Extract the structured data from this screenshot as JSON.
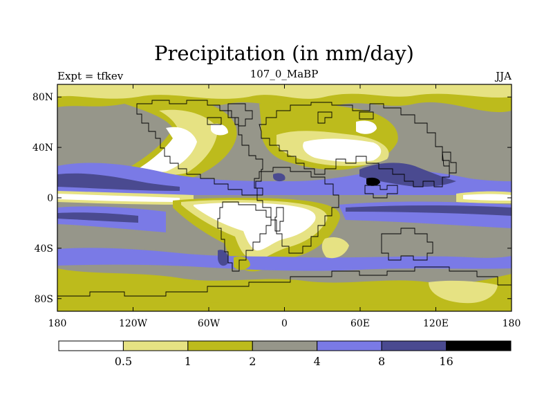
{
  "chart_data": {
    "type": "heatmap",
    "title": "Precipitation (in mm/day)",
    "subtitle_left": "Expt = tfkev",
    "subtitle_center": "107_0_MaBP",
    "subtitle_right": "JJA",
    "x_ticks": [
      {
        "value": -180,
        "label": "180"
      },
      {
        "value": -120,
        "label": "120W"
      },
      {
        "value": -60,
        "label": "60W"
      },
      {
        "value": 0,
        "label": "0"
      },
      {
        "value": 60,
        "label": "60E"
      },
      {
        "value": 120,
        "label": "120E"
      },
      {
        "value": 180,
        "label": "180"
      }
    ],
    "y_ticks": [
      {
        "value": 80,
        "label": "80N"
      },
      {
        "value": 40,
        "label": "40N"
      },
      {
        "value": 0,
        "label": "0"
      },
      {
        "value": -40,
        "label": "40S"
      },
      {
        "value": -80,
        "label": "80S"
      }
    ],
    "xlim": [
      -180,
      180
    ],
    "ylim": [
      -90,
      90
    ],
    "colorbar": {
      "levels": [
        "0.5",
        "1",
        "2",
        "4",
        "8",
        "16"
      ],
      "colors": [
        "#ffffff",
        "#e6e283",
        "#bdbb1c",
        "#96968a",
        "#7a7ae6",
        "#4a4a90",
        "#000000"
      ]
    },
    "coastline_color": "#000000"
  }
}
